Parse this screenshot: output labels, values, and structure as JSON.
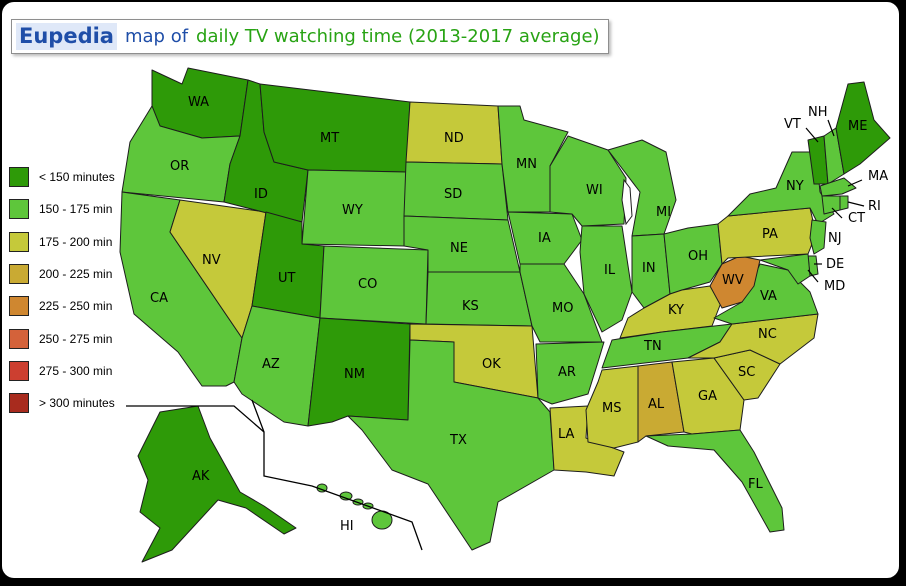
{
  "title": {
    "brand": "Eupedia",
    "middle": "map of",
    "rest": "daily TV watching time (2013-2017 average)"
  },
  "legend": [
    {
      "label": "< 150 minutes",
      "color": "#2e9a08"
    },
    {
      "label": "150 - 175 min",
      "color": "#5ec63b"
    },
    {
      "label": "175 - 200 min",
      "color": "#c5c93a"
    },
    {
      "label": "200 - 225 min",
      "color": "#c9aa33"
    },
    {
      "label": "225 - 250 min",
      "color": "#cf8730"
    },
    {
      "label": "250 - 275 min",
      "color": "#d4623a"
    },
    {
      "label": "275 - 300 min",
      "color": "#cc3f30"
    },
    {
      "label": "> 300 minutes",
      "color": "#a82b1e"
    }
  ],
  "states": {
    "WA": "< 150 minutes",
    "OR": "150 - 175 min",
    "CA": "150 - 175 min",
    "ID": "< 150 minutes",
    "NV": "175 - 200 min",
    "UT": "< 150 minutes",
    "AZ": "150 - 175 min",
    "MT": "< 150 minutes",
    "WY": "150 - 175 min",
    "CO": "150 - 175 min",
    "NM": "< 150 minutes",
    "ND": "175 - 200 min",
    "SD": "150 - 175 min",
    "NE": "150 - 175 min",
    "KS": "150 - 175 min",
    "OK": "175 - 200 min",
    "TX": "150 - 175 min",
    "MN": "150 - 175 min",
    "IA": "150 - 175 min",
    "MO": "150 - 175 min",
    "AR": "150 - 175 min",
    "LA": "175 - 200 min",
    "WI": "150 - 175 min",
    "IL": "150 - 175 min",
    "MI": "150 - 175 min",
    "IN": "150 - 175 min",
    "OH": "150 - 175 min",
    "KY": "175 - 200 min",
    "TN": "150 - 175 min",
    "MS": "175 - 200 min",
    "AL": "200 - 225 min",
    "GA": "175 - 200 min",
    "FL": "150 - 175 min",
    "SC": "175 - 200 min",
    "NC": "175 - 200 min",
    "VA": "150 - 175 min",
    "WV": "225 - 250 min",
    "PA": "175 - 200 min",
    "NY": "150 - 175 min",
    "VT": "< 150 minutes",
    "NH": "150 - 175 min",
    "ME": "< 150 minutes",
    "MA": "150 - 175 min",
    "RI": "150 - 175 min",
    "CT": "150 - 175 min",
    "NJ": "150 - 175 min",
    "DE": "150 - 175 min",
    "MD": "150 - 175 min",
    "AK": "< 150 minutes",
    "HI": "150 - 175 min"
  }
}
